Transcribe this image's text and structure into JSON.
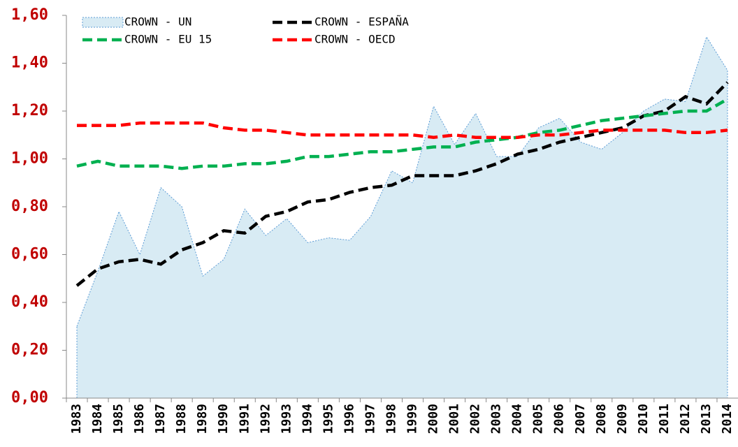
{
  "chart_data": {
    "type": "line",
    "categories": [
      "1983",
      "1984",
      "1985",
      "1986",
      "1987",
      "1988",
      "1989",
      "1990",
      "1991",
      "1992",
      "1993",
      "1994",
      "1995",
      "1996",
      "1997",
      "1998",
      "1999",
      "2000",
      "2001",
      "2002",
      "2003",
      "2004",
      "2005",
      "2006",
      "2007",
      "2008",
      "2009",
      "2010",
      "2011",
      "2012",
      "2013",
      "2014"
    ],
    "series": [
      {
        "name": "CROWN - UN",
        "type": "area",
        "color": "#5b9bd5",
        "fill": "#d8ebf4",
        "values": [
          0.3,
          0.53,
          0.78,
          0.6,
          0.88,
          0.8,
          0.51,
          0.58,
          0.79,
          0.68,
          0.75,
          0.65,
          0.67,
          0.66,
          0.76,
          0.95,
          0.9,
          1.22,
          1.06,
          1.19,
          1.01,
          1.01,
          1.13,
          1.17,
          1.07,
          1.04,
          1.11,
          1.2,
          1.25,
          1.24,
          1.51,
          1.37
        ]
      },
      {
        "name": "CROWN - ESPAÑA",
        "type": "line",
        "color": "#000000",
        "values": [
          0.47,
          0.54,
          0.57,
          0.58,
          0.56,
          0.62,
          0.65,
          0.7,
          0.69,
          0.76,
          0.78,
          0.82,
          0.83,
          0.86,
          0.88,
          0.89,
          0.93,
          0.93,
          0.93,
          0.95,
          0.98,
          1.02,
          1.04,
          1.07,
          1.09,
          1.11,
          1.13,
          1.18,
          1.2,
          1.26,
          1.23,
          1.32
        ]
      },
      {
        "name": "CROWN - EU 15",
        "type": "line",
        "color": "#00b050",
        "values": [
          0.97,
          0.99,
          0.97,
          0.97,
          0.97,
          0.96,
          0.97,
          0.97,
          0.98,
          0.98,
          0.99,
          1.01,
          1.01,
          1.02,
          1.03,
          1.03,
          1.04,
          1.05,
          1.05,
          1.07,
          1.08,
          1.09,
          1.11,
          1.12,
          1.14,
          1.16,
          1.17,
          1.18,
          1.19,
          1.2,
          1.2,
          1.25
        ]
      },
      {
        "name": "CROWN - OECD",
        "type": "line",
        "color": "#ff0000",
        "values": [
          1.14,
          1.14,
          1.14,
          1.15,
          1.15,
          1.15,
          1.15,
          1.13,
          1.12,
          1.12,
          1.11,
          1.1,
          1.1,
          1.1,
          1.1,
          1.1,
          1.1,
          1.09,
          1.1,
          1.09,
          1.09,
          1.09,
          1.1,
          1.1,
          1.11,
          1.12,
          1.12,
          1.12,
          1.12,
          1.11,
          1.11,
          1.12
        ]
      }
    ],
    "ylim": [
      0,
      1.6
    ],
    "yticks": [
      {
        "value": 0,
        "label": "0,00"
      },
      {
        "value": 0.2,
        "label": "0,20"
      },
      {
        "value": 0.4,
        "label": "0,40"
      },
      {
        "value": 0.6,
        "label": "0,60"
      },
      {
        "value": 0.8,
        "label": "0,80"
      },
      {
        "value": 1,
        "label": "1,00"
      },
      {
        "value": 1.2,
        "label": "1,20"
      },
      {
        "value": 1.4,
        "label": "1,40"
      },
      {
        "value": 1.6,
        "label": "1,60"
      }
    ],
    "ytick_color": "#c00000",
    "grid": false,
    "legend": "top"
  }
}
